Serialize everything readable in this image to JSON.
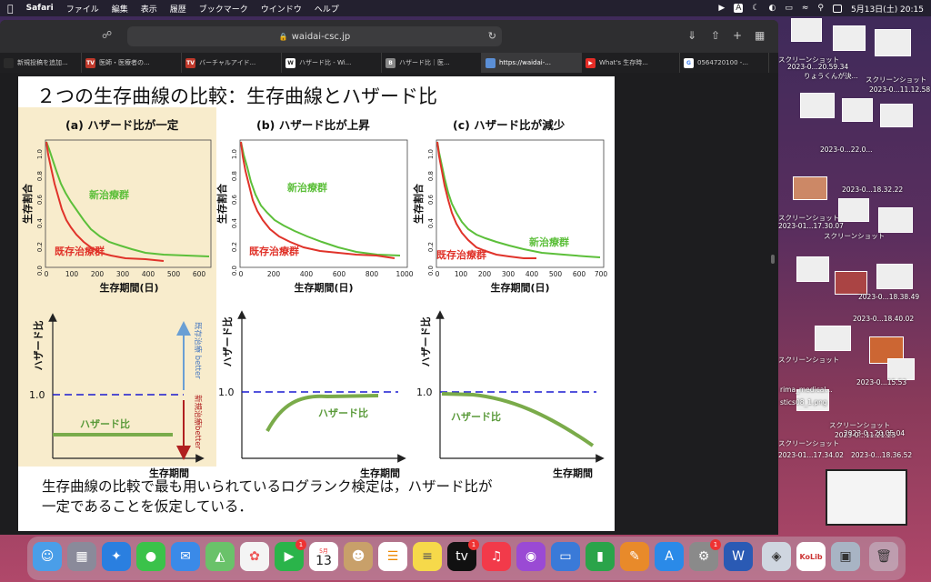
{
  "menubar": {
    "app": "Safari",
    "items": [
      "ファイル",
      "編集",
      "表示",
      "履歴",
      "ブックマーク",
      "ウインドウ",
      "ヘルプ"
    ],
    "datetime": "5月13日(土)  20:15"
  },
  "browser": {
    "address": "waidai-csc.jp",
    "tabs": [
      {
        "label": "新規投稿を追加...",
        "fav_color": "#2b2b2b",
        "fav_text": ""
      },
      {
        "label": "医師・医療者の...",
        "fav_color": "#c0392b",
        "fav_text": "TV"
      },
      {
        "label": "バーチャルアイド...",
        "fav_color": "#c0392b",
        "fav_text": "TV"
      },
      {
        "label": "ハザード比 - Wi...",
        "fav_color": "#ffffff",
        "fav_text": "W"
      },
      {
        "label": "ハザード比｜医...",
        "fav_color": "#888888",
        "fav_text": "B"
      },
      {
        "label": "https://waidai-...",
        "fav_color": "#5b8fd6",
        "fav_text": ""
      },
      {
        "label": "What's 生存時...",
        "fav_color": "#e52d27",
        "fav_text": "▶"
      },
      {
        "label": "0564720100 -...",
        "fav_color": "#ffffff",
        "fav_text": "G"
      }
    ]
  },
  "slide": {
    "title": "２つの生存曲線の比較：生存曲線とハザード比",
    "panels": [
      {
        "heading": "(a) ハザード比が一定",
        "xticks": [
          "0",
          "100",
          "200",
          "300",
          "400",
          "500",
          "600"
        ],
        "hr_label": "ハザード比"
      },
      {
        "heading": "(b) ハザード比が上昇",
        "xticks": [
          "0",
          "200",
          "400",
          "600",
          "800",
          "1000"
        ],
        "hr_label": "ハザード比"
      },
      {
        "heading": "(c) ハザード比が減少",
        "xticks": [
          "0",
          "100",
          "200",
          "300",
          "400",
          "500",
          "600",
          "700"
        ],
        "hr_label": "ハザード比"
      }
    ],
    "yticks": [
      "0.0",
      "0.2",
      "0.4",
      "0.6",
      "0.8",
      "1.0"
    ],
    "ylabel": "生存割合",
    "xlabel": "生存期間(日)",
    "new_group": "新治療群",
    "old_group": "既存治療群",
    "hr_axis_label": "ハザード比",
    "hr_time_label": "生存期間",
    "hr_one": "1.0",
    "arrow_up_text": "既存治療 better",
    "arrow_down_text": "新規治療better",
    "caption_line1": "生存曲線の比較で最も用いられているログランク検定は，ハザード比が",
    "caption_line2": "一定であることを仮定している．",
    "colors": {
      "new": "#5cbf3a",
      "old": "#e0332a",
      "hr": "#7aab4a",
      "dash": "#1a1ad0",
      "up": "#6a9fd4",
      "down": "#b02020",
      "panel_bg": "#f8eccc"
    }
  },
  "desktop": {
    "labels": [
      "スクリーンショット",
      "2023-0...20.59.34",
      "りょうくんが決...",
      "スクリーンショット",
      "2023-0...11.12.58",
      "2023-0...22.0...",
      "2023-0...18.32.22",
      "スクリーンショット",
      "2023-01...17.30.07",
      "スクリーンショット",
      "2023-0...18.38.49",
      "2023-0...18.40.02",
      "スクリーンショット",
      "2023-0...15.53",
      "rima_medical...",
      "stics08_1.png",
      "スクリーンショット",
      "2023-0...20.05.04",
      "スクリーンショット",
      "2023-0...11.21.23",
      "2023-01...17.34.02",
      "2023-0...18.36.52"
    ]
  },
  "dock": {
    "calendar_month": "5月",
    "calendar_day": "13",
    "apps": [
      "finder",
      "launchpad",
      "safari",
      "messages",
      "mail",
      "maps",
      "photos",
      "facetime",
      "calendar",
      "contacts",
      "reminders",
      "notes",
      "tv",
      "music",
      "podcasts",
      "keynote",
      "numbers",
      "pages",
      "app-store",
      "system-settings",
      "word",
      "preview",
      "kolib",
      "screenshot",
      "trash"
    ]
  }
}
